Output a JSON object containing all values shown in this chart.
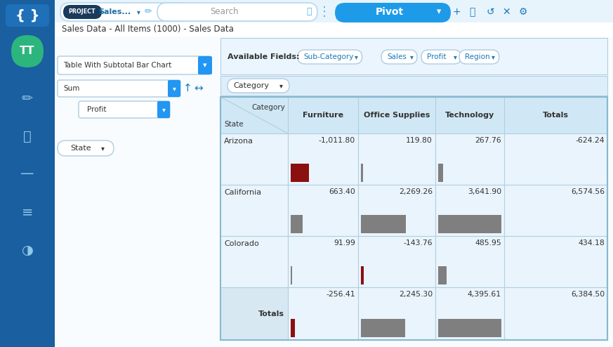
{
  "title_text": "Sales Data - All Items (1000) - Sales Data",
  "col_headers": [
    "Furniture",
    "Office Supplies",
    "Technology",
    "Totals"
  ],
  "row_headers": [
    "Arizona",
    "California",
    "Colorado",
    "Totals"
  ],
  "values": [
    [
      -1011.8,
      119.8,
      267.76,
      -624.24
    ],
    [
      663.4,
      2269.26,
      3641.9,
      6574.56
    ],
    [
      91.99,
      -143.76,
      485.95,
      434.18
    ],
    [
      -256.41,
      2245.3,
      4395.61,
      6384.5
    ]
  ],
  "bar_positive_color": "#7f7f7f",
  "bar_negative_color": "#8b1010",
  "max_val": 3641.9,
  "sidebar_bg": "#1a5fa0",
  "header_bg": "#e8f4fc",
  "main_bg": "#ffffff",
  "table_header_bg": "#d0e8f5",
  "table_row_bg": "#eaf4fc",
  "table_totals_bg": "#d8e8f2",
  "table_alt_bg": "#f5faff",
  "cell_border": "#b0cfe0",
  "pivot_btn_color": "#1e9be8",
  "dropdown_arrow_color": "#2196f3",
  "avatar_bg": "#2db57e",
  "teal_icon": "#4eb5e8",
  "dark_navy": "#1a3a5c"
}
